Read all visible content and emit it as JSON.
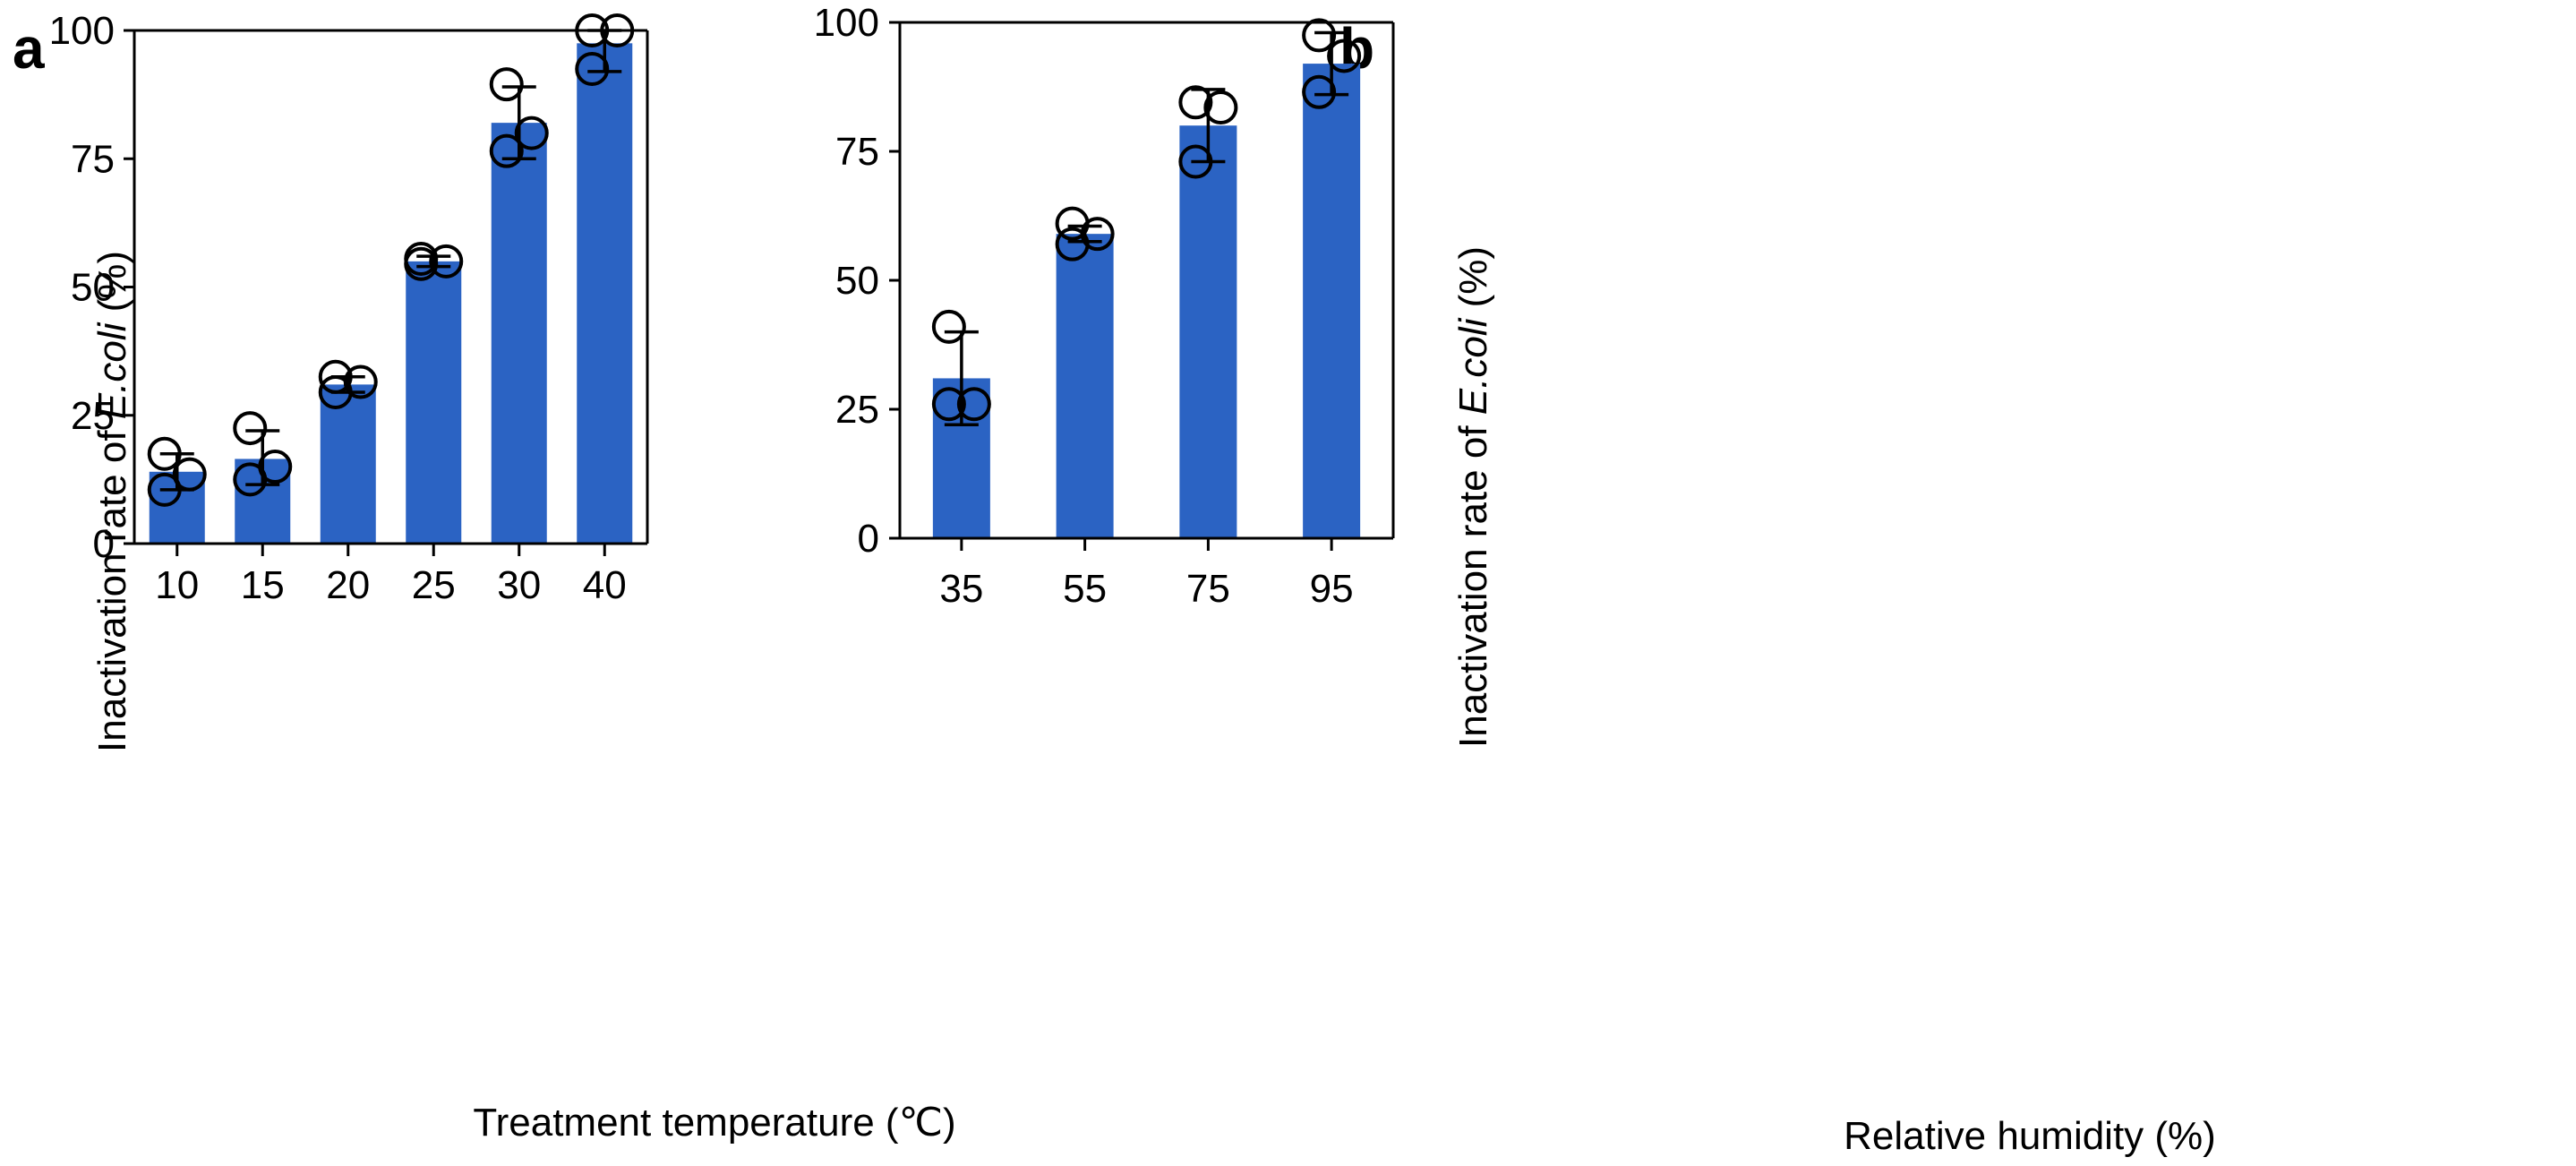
{
  "colors": {
    "bar": "#2B63C3",
    "axis": "#000000",
    "marker_edge": "#000000"
  },
  "chart_data": [
    {
      "panel": "a",
      "type": "bar",
      "title": "",
      "xlabel": "Treatment temperature (℃)",
      "ylabel_prefix": "Inactivation rate of ",
      "ylabel_italic": "E.coli",
      "ylabel_suffix": " (%)",
      "categories": [
        "10",
        "15",
        "20",
        "25",
        "30",
        "40"
      ],
      "values": [
        14,
        16.5,
        31,
        55,
        82,
        97.5
      ],
      "error_low": [
        10.5,
        11.5,
        29.5,
        54,
        75,
        92
      ],
      "error_high": [
        17.5,
        22,
        32.5,
        56,
        89,
        100
      ],
      "points": [
        [
          17.5,
          10.5,
          13.5
        ],
        [
          22.5,
          12.5,
          15
        ],
        [
          32.5,
          29.5,
          31.5
        ],
        [
          55.5,
          54.5,
          55
        ],
        [
          89.5,
          76.5,
          80
        ],
        [
          100,
          92.5,
          100
        ]
      ],
      "ylim": [
        0,
        100
      ],
      "yticks": [
        0,
        25,
        50,
        75,
        100
      ]
    },
    {
      "panel": "b",
      "type": "bar",
      "title": "",
      "xlabel": "Relative humidity (%)",
      "ylabel_prefix": "Inactivation rate of ",
      "ylabel_italic": "E.coli",
      "ylabel_suffix": " (%)",
      "categories": [
        "35",
        "55",
        "75",
        "95"
      ],
      "values": [
        31,
        59,
        80,
        92
      ],
      "error_low": [
        22,
        57.5,
        73,
        86
      ],
      "error_high": [
        40,
        60.5,
        87,
        98
      ],
      "points": [
        [
          41,
          26,
          26
        ],
        [
          61,
          57,
          59
        ],
        [
          84.5,
          73,
          83.5
        ],
        [
          97.5,
          86.5,
          93.5
        ]
      ],
      "ylim": [
        0,
        100
      ],
      "yticks": [
        0,
        25,
        50,
        75,
        100
      ]
    }
  ]
}
